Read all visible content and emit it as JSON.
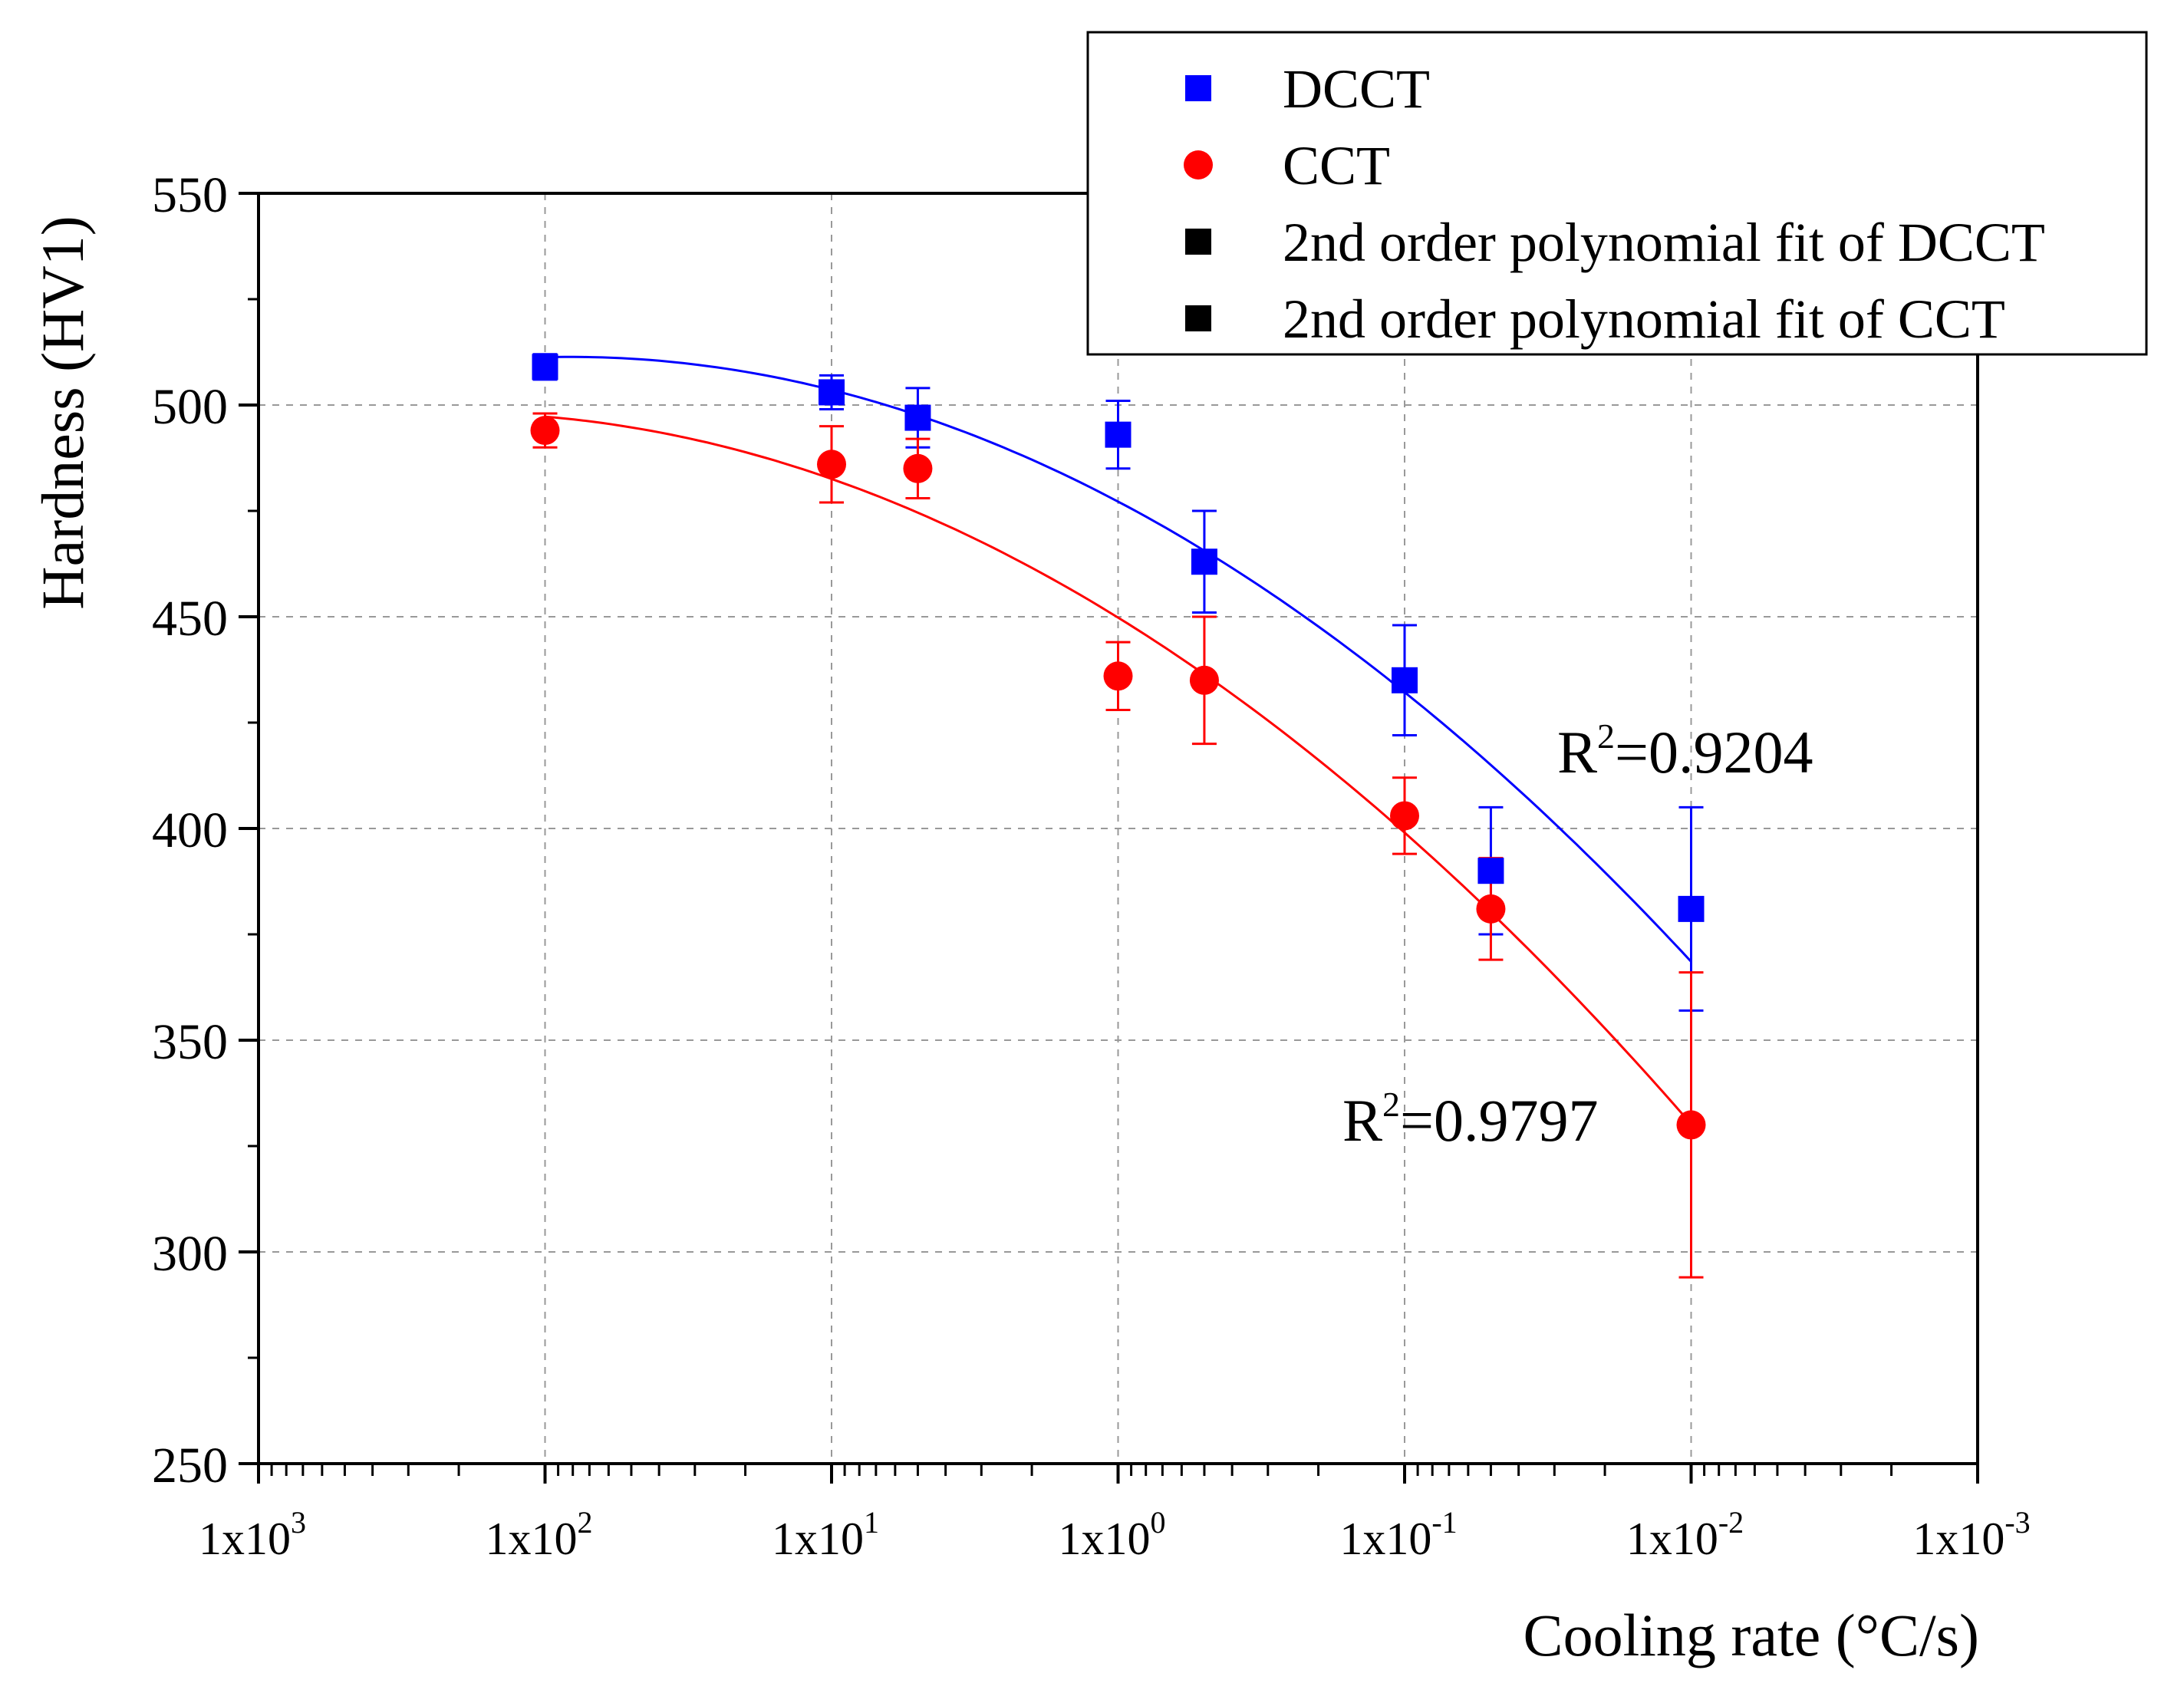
{
  "chart_data": {
    "type": "scatter",
    "title": "",
    "xlabel": "Cooling rate (°C/s)",
    "ylabel": "Hardness (HV1)",
    "x_scale": "log",
    "x_reversed": true,
    "xlim": [
      1000,
      0.001
    ],
    "ylim": [
      250,
      550
    ],
    "x_ticks": [
      {
        "value": 1000,
        "mantissa": "1x10",
        "exp": "3"
      },
      {
        "value": 100,
        "mantissa": "1x10",
        "exp": "2"
      },
      {
        "value": 10,
        "mantissa": "1x10",
        "exp": "1"
      },
      {
        "value": 1,
        "mantissa": "1x10",
        "exp": "0"
      },
      {
        "value": 0.1,
        "mantissa": "1x10",
        "exp": "-1"
      },
      {
        "value": 0.01,
        "mantissa": "1x10",
        "exp": "-2"
      },
      {
        "value": 0.001,
        "mantissa": "1x10",
        "exp": "-3"
      }
    ],
    "y_ticks": [
      "250",
      "300",
      "350",
      "400",
      "450",
      "500",
      "550"
    ],
    "grid": true,
    "legend_position": "top-right",
    "series": [
      {
        "name": "DCCT",
        "color": "#0000ff",
        "marker": "square",
        "points": [
          {
            "x": 100,
            "y": 509,
            "err": 3
          },
          {
            "x": 10,
            "y": 503,
            "err": 4
          },
          {
            "x": 5,
            "y": 497,
            "err": 7
          },
          {
            "x": 1,
            "y": 493,
            "err": 8
          },
          {
            "x": 0.5,
            "y": 463,
            "err": 12
          },
          {
            "x": 0.1,
            "y": 435,
            "err": 13
          },
          {
            "x": 0.05,
            "y": 390,
            "err": 15
          },
          {
            "x": 0.01,
            "y": 381,
            "err": 24
          }
        ],
        "fit": {
          "name": "2nd order polynomial fit of DCCT",
          "r2_base": "R",
          "r2_exp": "2",
          "r2_value": "=0.9204"
        }
      },
      {
        "name": "CCT",
        "color": "#ff0000",
        "marker": "circle",
        "points": [
          {
            "x": 100,
            "y": 494,
            "err": 4
          },
          {
            "x": 10,
            "y": 486,
            "err": 9
          },
          {
            "x": 5,
            "y": 485,
            "err": 7
          },
          {
            "x": 1,
            "y": 436,
            "err": 8
          },
          {
            "x": 0.5,
            "y": 435,
            "err": 15
          },
          {
            "x": 0.1,
            "y": 403,
            "err": 9
          },
          {
            "x": 0.05,
            "y": 381,
            "err": 12
          },
          {
            "x": 0.01,
            "y": 330,
            "err": 36
          }
        ],
        "fit": {
          "name": "2nd order polynomial fit of CCT",
          "r2_base": "R",
          "r2_exp": "2",
          "r2_value": "=0.9797"
        }
      }
    ],
    "legend": [
      {
        "label": "DCCT",
        "color": "#0000ff",
        "marker": "square"
      },
      {
        "label": "CCT",
        "color": "#ff0000",
        "marker": "circle"
      },
      {
        "label": "2nd order polynomial fit of DCCT",
        "color": "#000000",
        "marker": "square"
      },
      {
        "label": "2nd order polynomial fit of CCT",
        "color": "#000000",
        "marker": "square"
      }
    ]
  }
}
